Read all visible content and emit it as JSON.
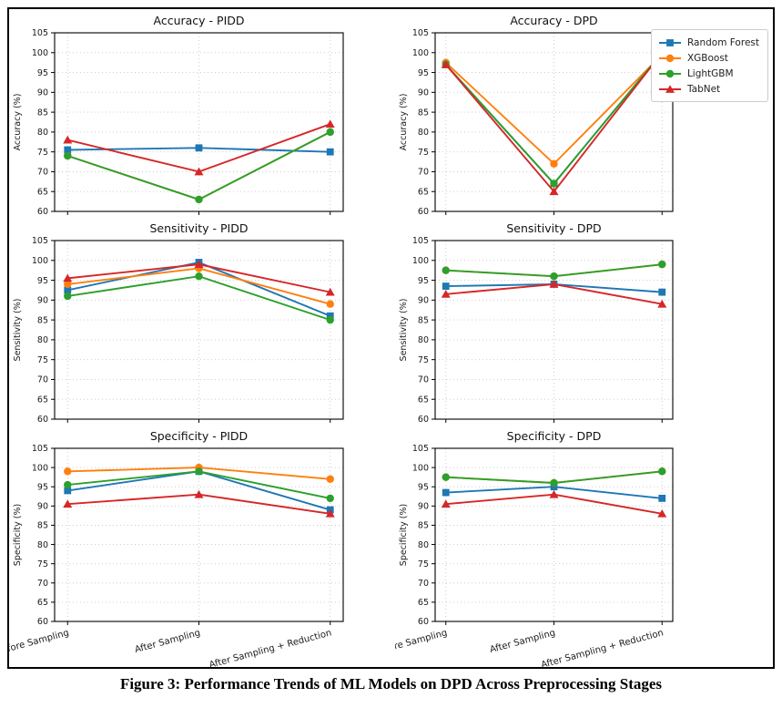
{
  "figure": {
    "caption": "Figure 3: Performance Trends of ML Models on DPD Across Preprocessing Stages"
  },
  "legend": {
    "position": "top-right",
    "entries": [
      {
        "label": "Random Forest",
        "color": "#1f77b4",
        "marker": "square"
      },
      {
        "label": "XGBoost",
        "color": "#ff7f0e",
        "marker": "circle"
      },
      {
        "label": "LightGBM",
        "color": "#2ca02c",
        "marker": "circle"
      },
      {
        "label": "TabNet",
        "color": "#d62728",
        "marker": "triangle"
      }
    ]
  },
  "chart_data": [
    {
      "id": "accuracy-pidd",
      "type": "line",
      "title": "Accuracy - PIDD",
      "xlabel": "",
      "ylabel": "Accuracy (%)",
      "categories": [
        "Before Sampling",
        "After Sampling",
        "After Sampling + Reduction"
      ],
      "ylim": [
        60,
        105
      ],
      "ytick_step": 5,
      "grid": true,
      "show_x_labels": false,
      "series": [
        {
          "name": "Random Forest",
          "values": [
            75.5,
            76,
            75
          ]
        },
        {
          "name": "XGBoost",
          "values": [
            74,
            63,
            80
          ]
        },
        {
          "name": "LightGBM",
          "values": [
            74,
            63,
            80
          ]
        },
        {
          "name": "TabNet",
          "values": [
            78,
            70,
            82
          ]
        }
      ]
    },
    {
      "id": "accuracy-dpd",
      "type": "line",
      "title": "Accuracy - DPD",
      "xlabel": "",
      "ylabel": "Accuracy (%)",
      "categories": [
        "Before Sampling",
        "After Sampling",
        "After Sampling + Reduction"
      ],
      "ylim": [
        60,
        105
      ],
      "ytick_step": 5,
      "grid": true,
      "show_x_labels": false,
      "series": [
        {
          "name": "Random Forest",
          "values": [
            97,
            67,
            100
          ]
        },
        {
          "name": "XGBoost",
          "values": [
            97.5,
            72,
            99.5
          ]
        },
        {
          "name": "LightGBM",
          "values": [
            97,
            67,
            100
          ]
        },
        {
          "name": "TabNet",
          "values": [
            97,
            65,
            100
          ]
        }
      ]
    },
    {
      "id": "sensitivity-pidd",
      "type": "line",
      "title": "Sensitivity - PIDD",
      "xlabel": "",
      "ylabel": "Sensitivity (%)",
      "categories": [
        "Before Sampling",
        "After Sampling",
        "After Sampling + Reduction"
      ],
      "ylim": [
        60,
        105
      ],
      "ytick_step": 5,
      "grid": true,
      "show_x_labels": false,
      "series": [
        {
          "name": "Random Forest",
          "values": [
            92.5,
            99.5,
            86
          ]
        },
        {
          "name": "XGBoost",
          "values": [
            94,
            98,
            89
          ]
        },
        {
          "name": "LightGBM",
          "values": [
            91,
            96,
            85
          ]
        },
        {
          "name": "TabNet",
          "values": [
            95.5,
            99,
            92
          ]
        }
      ]
    },
    {
      "id": "sensitivity-dpd",
      "type": "line",
      "title": "Sensitivity - DPD",
      "xlabel": "",
      "ylabel": "Sensitivity (%)",
      "categories": [
        "Before Sampling",
        "After Sampling",
        "After Sampling + Reduction"
      ],
      "ylim": [
        60,
        105
      ],
      "ytick_step": 5,
      "grid": true,
      "show_x_labels": false,
      "series": [
        {
          "name": "Random Forest",
          "values": [
            93.5,
            94,
            92
          ]
        },
        {
          "name": "XGBoost",
          "values": [
            97.5,
            96,
            99
          ]
        },
        {
          "name": "LightGBM",
          "values": [
            97.5,
            96,
            99
          ]
        },
        {
          "name": "TabNet",
          "values": [
            91.5,
            94,
            89
          ]
        }
      ]
    },
    {
      "id": "specificity-pidd",
      "type": "line",
      "title": "Specificity - PIDD",
      "xlabel": "",
      "ylabel": "Specificity (%)",
      "categories": [
        "Before Sampling",
        "After Sampling",
        "After Sampling + Reduction"
      ],
      "ylim": [
        60,
        105
      ],
      "ytick_step": 5,
      "grid": true,
      "show_x_labels": true,
      "series": [
        {
          "name": "Random Forest",
          "values": [
            94,
            99,
            89
          ]
        },
        {
          "name": "XGBoost",
          "values": [
            99,
            100,
            97
          ]
        },
        {
          "name": "LightGBM",
          "values": [
            95.5,
            99,
            92
          ]
        },
        {
          "name": "TabNet",
          "values": [
            90.5,
            93,
            88
          ]
        }
      ]
    },
    {
      "id": "specificity-dpd",
      "type": "line",
      "title": "Specificity - DPD",
      "xlabel": "",
      "ylabel": "Specificity (%)",
      "categories": [
        "Before Sampling",
        "After Sampling",
        "After Sampling + Reduction"
      ],
      "ylim": [
        60,
        105
      ],
      "ytick_step": 5,
      "grid": true,
      "show_x_labels": true,
      "series": [
        {
          "name": "Random Forest",
          "values": [
            93.5,
            95,
            92
          ]
        },
        {
          "name": "XGBoost",
          "values": [
            97.5,
            96,
            99
          ]
        },
        {
          "name": "LightGBM",
          "values": [
            97.5,
            96,
            99
          ]
        },
        {
          "name": "TabNet",
          "values": [
            90.5,
            93,
            88
          ]
        }
      ]
    }
  ]
}
